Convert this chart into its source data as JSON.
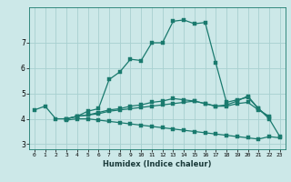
{
  "xlabel": "Humidex (Indice chaleur)",
  "ylabel": "",
  "x_ticks": [
    0,
    1,
    2,
    3,
    4,
    5,
    6,
    7,
    8,
    9,
    10,
    11,
    12,
    13,
    14,
    15,
    16,
    17,
    18,
    19,
    20,
    21,
    22,
    23
  ],
  "xlim": [
    -0.5,
    23.5
  ],
  "ylim": [
    2.8,
    8.4
  ],
  "y_ticks": [
    3,
    4,
    5,
    6,
    7
  ],
  "background_color": "#cce8e8",
  "grid_color": "#a8d0d0",
  "line_color": "#1a7a6e",
  "lines": [
    {
      "x": [
        0,
        1,
        2,
        3,
        4,
        5,
        6,
        7,
        8,
        9,
        10,
        11,
        12,
        13,
        14,
        15,
        16,
        17,
        18,
        19,
        20,
        21,
        22
      ],
      "y": [
        4.35,
        4.5,
        4.0,
        4.0,
        4.1,
        4.3,
        4.4,
        5.55,
        5.85,
        6.35,
        6.3,
        7.0,
        7.0,
        7.85,
        7.9,
        7.75,
        7.8,
        6.2,
        4.65,
        4.75,
        4.85,
        4.4,
        4.05
      ]
    },
    {
      "x": [
        3,
        4,
        5,
        6,
        7,
        8,
        9,
        10,
        11,
        12,
        13,
        14,
        15,
        16,
        17,
        18,
        19,
        20,
        21,
        22
      ],
      "y": [
        4.0,
        4.1,
        4.15,
        4.2,
        4.3,
        4.35,
        4.4,
        4.45,
        4.5,
        4.55,
        4.6,
        4.65,
        4.7,
        4.6,
        4.5,
        4.5,
        4.6,
        4.65,
        4.35,
        4.1
      ]
    },
    {
      "x": [
        3,
        4,
        5,
        6,
        7,
        8,
        9,
        10,
        11,
        12,
        13,
        14,
        15,
        16,
        17,
        18,
        19,
        20,
        21,
        22,
        23
      ],
      "y": [
        3.95,
        4.0,
        4.0,
        3.95,
        3.9,
        3.85,
        3.8,
        3.75,
        3.7,
        3.65,
        3.6,
        3.55,
        3.5,
        3.45,
        3.4,
        3.35,
        3.3,
        3.25,
        3.2,
        3.3,
        3.25
      ]
    },
    {
      "x": [
        3,
        4,
        5,
        6,
        7,
        8,
        9,
        10,
        11,
        12,
        13,
        14,
        15,
        16,
        17,
        18,
        19,
        20,
        21,
        22,
        23
      ],
      "y": [
        4.0,
        4.1,
        4.15,
        4.25,
        4.35,
        4.4,
        4.5,
        4.55,
        4.65,
        4.7,
        4.8,
        4.75,
        4.7,
        4.6,
        4.5,
        4.55,
        4.7,
        4.9,
        4.4,
        4.0,
        3.3
      ]
    }
  ]
}
